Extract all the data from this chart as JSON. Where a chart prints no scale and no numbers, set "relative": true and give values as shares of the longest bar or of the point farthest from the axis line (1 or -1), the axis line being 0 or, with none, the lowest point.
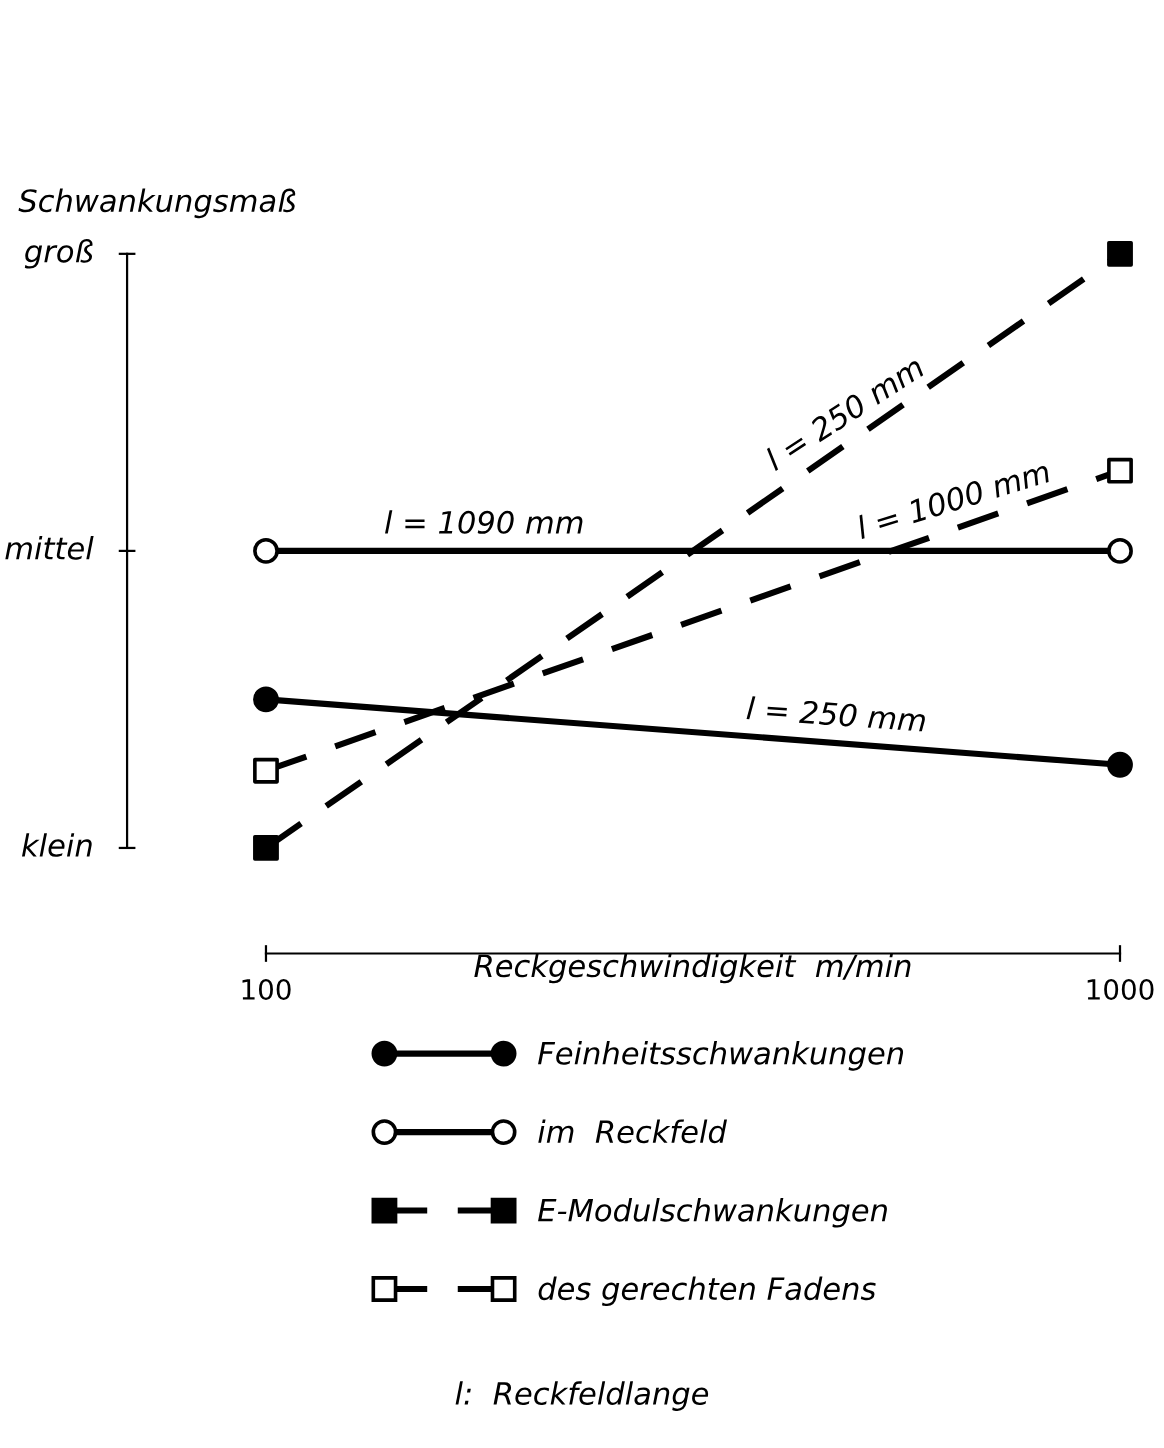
{
  "chart_data": {
    "type": "line",
    "ylabel": "Schwankungsmaß",
    "xlabel": "Reckgeschwindigkeit  m/min",
    "x": [
      100,
      1000
    ],
    "relative": true,
    "series": [
      {
        "name": "Feinheitsschwankungen",
        "color": "#000000",
        "values": [
          0.25,
          0.14
        ],
        "colors": [
          "#000000",
          "#000000"
        ],
        "marker": "circle",
        "line_style": "solid"
      },
      {
        "name": "im  Reckfeld",
        "color": "#000000",
        "values": [
          0.5,
          0.5
        ],
        "colors": [
          "#ffffff",
          "#ffffff"
        ],
        "marker": "circle",
        "line_style": "solid"
      },
      {
        "name": "E-Modulschwankungen",
        "color": "#000000",
        "values": [
          0,
          1
        ],
        "colors": [
          "#000000",
          "#000000"
        ],
        "marker": "square",
        "line_style": "dashed"
      },
      {
        "name": "des gerechten Fadens",
        "color": "#000000",
        "values": [
          0.13,
          0.635
        ],
        "colors": [
          "#ffffff",
          "#ffffff"
        ],
        "marker": "square",
        "line_style": "dashed"
      }
    ],
    "xlim": [
      100,
      1000
    ],
    "xticks": [
      100,
      1000
    ],
    "grid": false,
    "legend": "bottom",
    "annotations": [
      "klein",
      "mittel",
      "groß",
      {
        "text": "l = 1090 mm",
        "x": 330,
        "y": 0.5
      },
      {
        "text": "l = 250 mm",
        "x": 700,
        "y": 0.177
      },
      {
        "text": "l = 250 mm",
        "x": 720,
        "y": 0.689
      },
      {
        "text": "l = 1000 mm",
        "x": 830,
        "y": 0.54
      },
      "l:  Reckfeldlange"
    ]
  }
}
